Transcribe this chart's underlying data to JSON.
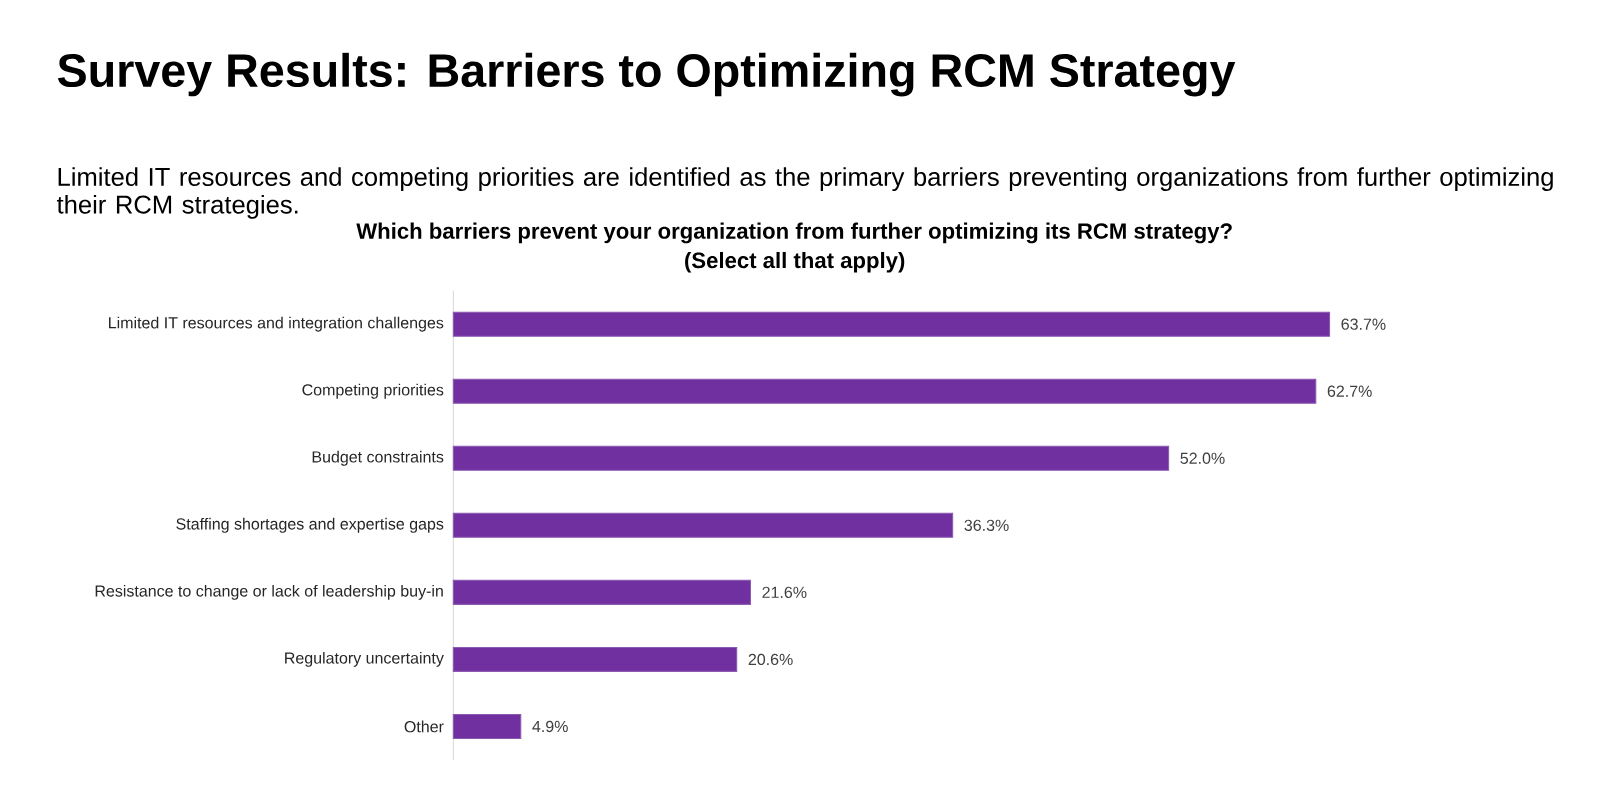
{
  "chart_data": {
    "type": "bar",
    "orientation": "horizontal",
    "title": "Survey Results: Barriers to Optimizing RCM Strategy",
    "subtitle": "Limited IT resources and competing priorities are identified as the primary barriers preventing organizations from further optimizing their RCM strategies.",
    "annotations": [
      "Which barriers prevent your organization from further optimizing its RCM strategy?",
      "(Select all that apply)"
    ],
    "categories": [
      "Limited IT resources and integration challenges",
      "Competing priorities",
      "Budget constraints",
      "Staffing shortages and expertise gaps",
      "Resistance to change or lack of leadership buy-in",
      "Regulatory uncertainty",
      "Other"
    ],
    "values": [
      63.7,
      62.7,
      52.0,
      36.3,
      21.6,
      20.6,
      4.9
    ],
    "value_labels": [
      "63.7%",
      "62.7%",
      "52.0%",
      "36.3%",
      "21.6%",
      "20.6%",
      "4.9%"
    ],
    "color": "#7030a0"
  }
}
